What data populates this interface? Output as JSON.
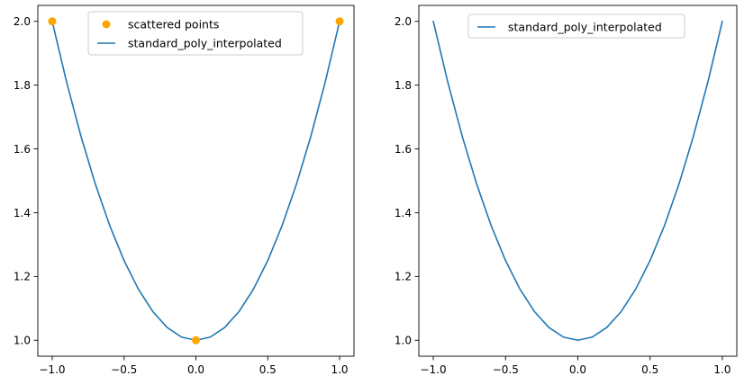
{
  "chart_data": [
    {
      "type": "line",
      "title": "",
      "xlabel": "",
      "ylabel": "",
      "xlim": [
        -1.1,
        1.1
      ],
      "ylim": [
        0.95,
        2.05
      ],
      "xticks": [
        -1.0,
        -0.5,
        0.0,
        0.5,
        1.0
      ],
      "xtick_labels": [
        "−1.0",
        "−0.5",
        "0.0",
        "0.5",
        "1.0"
      ],
      "yticks": [
        1.0,
        1.2,
        1.4,
        1.6,
        1.8,
        2.0
      ],
      "ytick_labels": [
        "1.0",
        "1.2",
        "1.4",
        "1.6",
        "1.8",
        "2.0"
      ],
      "grid": false,
      "legend_position": "top-center",
      "series": [
        {
          "name": "scattered points",
          "kind": "scatter",
          "color": "#FFA500",
          "x": [
            -1.0,
            0.0,
            1.0
          ],
          "y": [
            2.0,
            1.0,
            2.0
          ]
        },
        {
          "name": "standard_poly_interpolated",
          "kind": "line",
          "color": "#1f77b4",
          "x": [
            -1.0,
            -0.9,
            -0.8,
            -0.7,
            -0.6,
            -0.5,
            -0.4,
            -0.3,
            -0.2,
            -0.1,
            0.0,
            0.1,
            0.2,
            0.3,
            0.4,
            0.5,
            0.6,
            0.7,
            0.8,
            0.9,
            1.0
          ],
          "y": [
            2.0,
            1.81,
            1.64,
            1.49,
            1.36,
            1.25,
            1.16,
            1.09,
            1.04,
            1.01,
            1.0,
            1.01,
            1.04,
            1.09,
            1.16,
            1.25,
            1.36,
            1.49,
            1.64,
            1.81,
            2.0
          ]
        }
      ]
    },
    {
      "type": "line",
      "title": "",
      "xlabel": "",
      "ylabel": "",
      "xlim": [
        -1.1,
        1.1
      ],
      "ylim": [
        0.95,
        2.05
      ],
      "xticks": [
        -1.0,
        -0.5,
        0.0,
        0.5,
        1.0
      ],
      "xtick_labels": [
        "−1.0",
        "−0.5",
        "0.0",
        "0.5",
        "1.0"
      ],
      "yticks": [
        1.0,
        1.2,
        1.4,
        1.6,
        1.8,
        2.0
      ],
      "ytick_labels": [
        "1.0",
        "1.2",
        "1.4",
        "1.6",
        "1.8",
        "2.0"
      ],
      "grid": false,
      "legend_position": "top-center",
      "series": [
        {
          "name": "standard_poly_interpolated",
          "kind": "line",
          "color": "#1f77b4",
          "x": [
            -1.0,
            -0.9,
            -0.8,
            -0.7,
            -0.6,
            -0.5,
            -0.4,
            -0.3,
            -0.2,
            -0.1,
            0.0,
            0.1,
            0.2,
            0.3,
            0.4,
            0.5,
            0.6,
            0.7,
            0.8,
            0.9,
            1.0
          ],
          "y": [
            2.0,
            1.81,
            1.64,
            1.49,
            1.36,
            1.25,
            1.16,
            1.09,
            1.04,
            1.01,
            1.0,
            1.01,
            1.04,
            1.09,
            1.16,
            1.25,
            1.36,
            1.49,
            1.64,
            1.81,
            2.0
          ]
        }
      ]
    }
  ]
}
